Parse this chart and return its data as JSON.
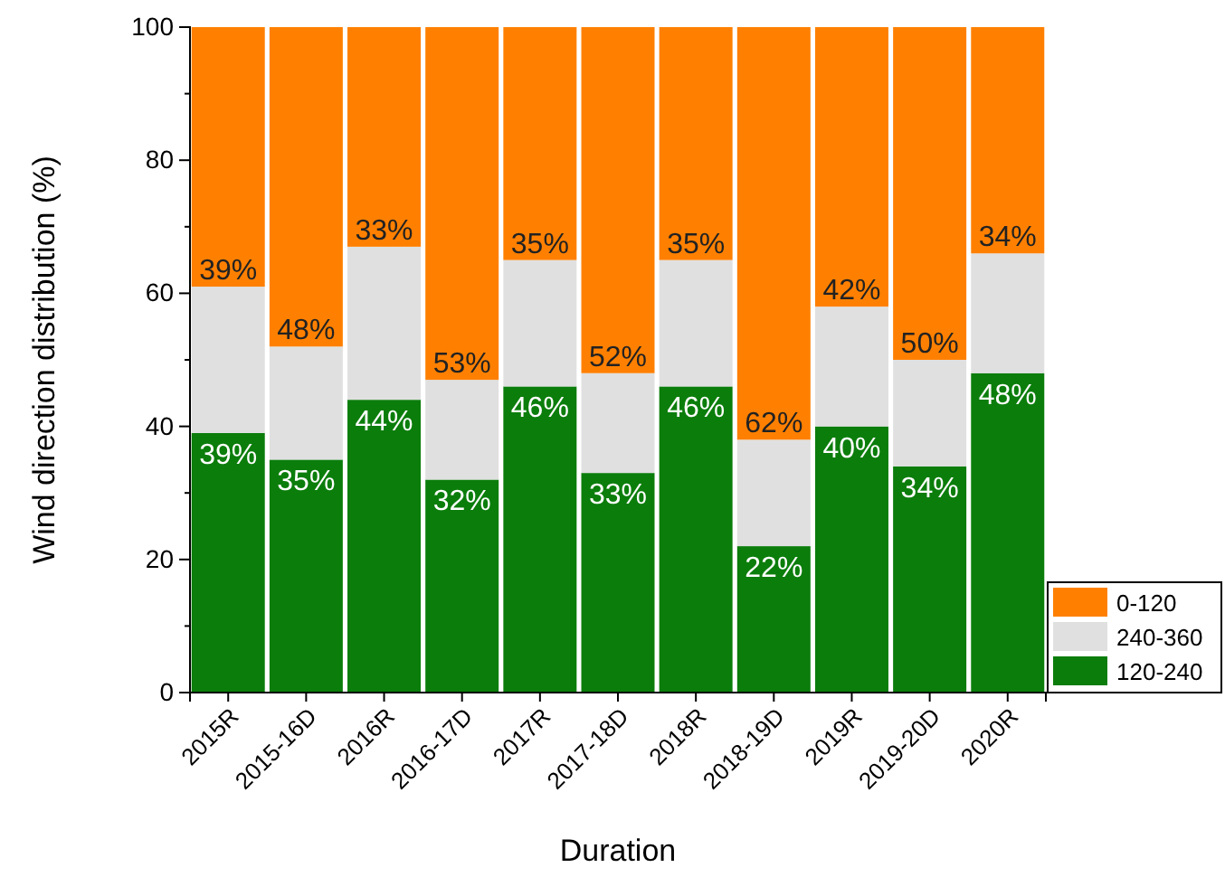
{
  "chart_data": {
    "type": "bar",
    "stacked": true,
    "xlabel": "Duration",
    "ylabel": "Wind direction distribution (%)",
    "categories": [
      "2015R",
      "2015-16D",
      "2016R",
      "2016-17D",
      "2017R",
      "2017-18D",
      "2018R",
      "2018-19D",
      "2019R",
      "2019-20D",
      "2020R"
    ],
    "series": [
      {
        "name": "120-240",
        "color": "#0b7d0b",
        "values": [
          39,
          35,
          44,
          32,
          46,
          33,
          46,
          22,
          40,
          34,
          48
        ],
        "value_labels": [
          "39%",
          "35%",
          "44%",
          "32%",
          "46%",
          "33%",
          "46%",
          "22%",
          "40%",
          "34%",
          "48%"
        ]
      },
      {
        "name": "240-360",
        "color": "#e0e0e0",
        "values": [
          22,
          17,
          23,
          15,
          19,
          15,
          19,
          16,
          18,
          16,
          18
        ]
      },
      {
        "name": "0-120",
        "color": "#ff8000",
        "values": [
          39,
          48,
          33,
          53,
          35,
          52,
          35,
          62,
          42,
          50,
          34
        ],
        "value_labels": [
          "39%",
          "48%",
          "33%",
          "53%",
          "35%",
          "52%",
          "35%",
          "62%",
          "42%",
          "50%",
          "34%"
        ]
      }
    ],
    "ylim": [
      0,
      100
    ],
    "yticks": [
      0,
      20,
      40,
      60,
      80,
      100
    ],
    "legend": "bottom right"
  }
}
